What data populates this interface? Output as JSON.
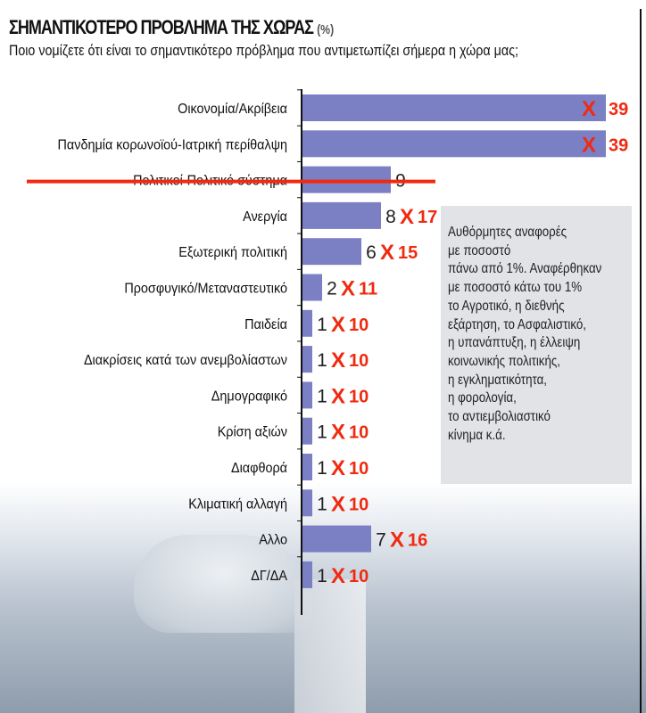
{
  "title": "ΣΗΜΑΝΤΙΚΟΤΕΡΟ ΠΡΟΒΛΗΜΑ ΤΗΣ ΧΩΡΑΣ",
  "title_unit": "(%)",
  "subtitle": "Ποιο νομίζετε ότι είναι το σημαντικότερο πρόβλημα που αντιμετωπίζει σήμερα η χώρα μας;",
  "note": "Αυθόρμητες αναφορές\nμε ποσοστό\nπάνω από 1%. Αναφέρθηκαν\nμε ποσοστό κάτω του 1%\nτο Αγροτικό, η διεθνής\nεξάρτηση, το Ασφαλιστικό,\nη υπανάπτυξη, η έλλειψη\nκοινωνικής πολιτικής,\nη εγκληματικότητα,\nη φορολογία,\nτο αντιεμβολιαστικό\nκίνημα κ.ά.",
  "colors": {
    "bar": "#7b7fc4",
    "annotation": "#f02a10",
    "text": "#111111"
  },
  "chart_data": {
    "type": "bar",
    "orientation": "horizontal",
    "title": "ΣΗΜΑΝΤΙΚΟΤΕΡΟ ΠΡΟΒΛΗΜΑ ΤΗΣ ΧΩΡΑΣ (%)",
    "categories": [
      "Οικονομία/Ακρίβεια",
      "Πανδημία κορωνοϊού-Ιατρική περίθαλψη",
      "Πολιτικοί-Πολιτικό σύστημα",
      "Ανεργία",
      "Εξωτερική πολιτική",
      "Προσφυγικό/Μεταναστευτικό",
      "Παιδεία",
      "Διακρίσεις κατά των ανεμβολίαστων",
      "Δημογραφικό",
      "Κρίση αξιών",
      "Διαφθορά",
      "Κλιματική αλλαγή",
      "Αλλο",
      "ΔΓ/ΔΑ"
    ],
    "values": [
      39,
      39,
      9,
      8,
      6,
      2,
      1,
      1,
      1,
      1,
      1,
      1,
      7,
      1
    ],
    "annotations": {
      "handwritten_values": [
        39,
        39,
        null,
        17,
        15,
        11,
        10,
        10,
        10,
        10,
        10,
        10,
        16,
        10
      ],
      "crossed_out_values": [
        true,
        true,
        false,
        true,
        true,
        true,
        true,
        true,
        true,
        true,
        true,
        true,
        true,
        true
      ],
      "struck_through_category": "Πολιτικοί-Πολιτικό σύστημα"
    }
  }
}
